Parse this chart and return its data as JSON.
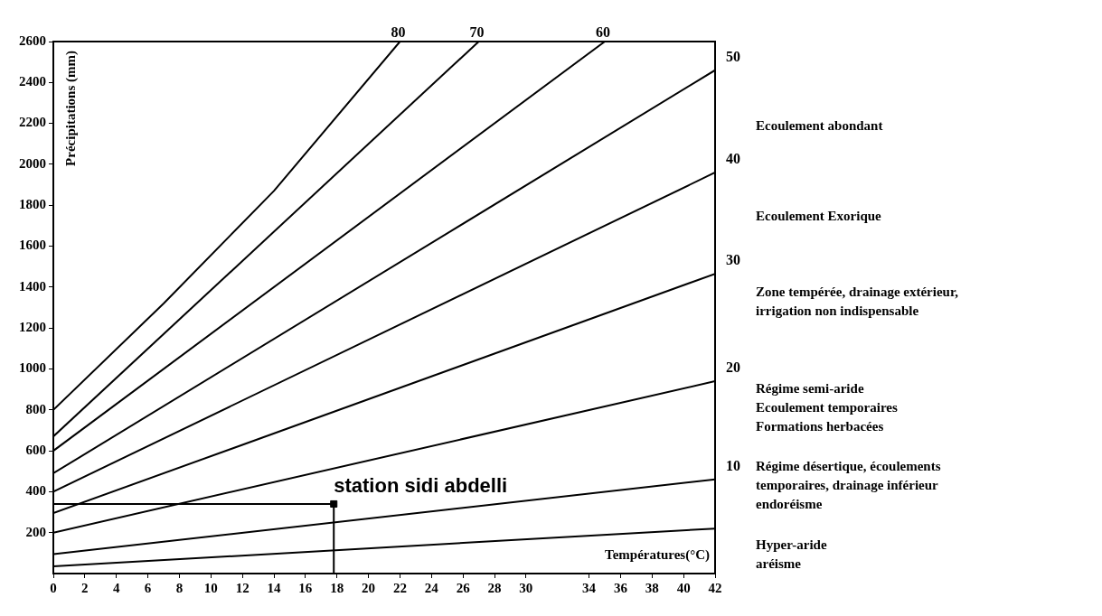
{
  "chart_data": {
    "type": "line",
    "xlabel": "Températures(°C)",
    "ylabel": "Précipitations (mm)",
    "xlim": [
      0,
      42
    ],
    "ylim": [
      0,
      2600
    ],
    "xticks": [
      0,
      2,
      4,
      6,
      8,
      10,
      12,
      14,
      16,
      18,
      20,
      22,
      24,
      26,
      28,
      30,
      34,
      36,
      38,
      40,
      42
    ],
    "yticks": [
      200,
      400,
      600,
      800,
      1000,
      1200,
      1400,
      1600,
      1800,
      2000,
      2200,
      2400,
      2600
    ],
    "grid": false,
    "legend": false,
    "series": [
      {
        "type": "line",
        "color": "#000000",
        "x": [
          0,
          42
        ],
        "values": [
          35,
          220
        ]
      },
      {
        "type": "line",
        "name": "10",
        "color": "#000000",
        "x": [
          0,
          42
        ],
        "values": [
          95,
          460
        ]
      },
      {
        "type": "line",
        "name": "20",
        "color": "#000000",
        "x": [
          0,
          42
        ],
        "values": [
          200,
          940
        ]
      },
      {
        "type": "line",
        "name": "30",
        "color": "#000000",
        "x": [
          0,
          42
        ],
        "values": [
          295,
          1465
        ]
      },
      {
        "type": "line",
        "name": "40",
        "color": "#000000",
        "x": [
          0,
          42
        ],
        "values": [
          400,
          1960
        ]
      },
      {
        "type": "line",
        "name": "50",
        "color": "#000000",
        "x": [
          0,
          42
        ],
        "values": [
          490,
          2460
        ]
      },
      {
        "type": "line",
        "name": "60",
        "color": "#000000",
        "x": [
          0,
          35
        ],
        "values": [
          600,
          2600
        ]
      },
      {
        "type": "line",
        "name": "70",
        "color": "#000000",
        "x": [
          0,
          27
        ],
        "values": [
          670,
          2600
        ]
      },
      {
        "type": "line",
        "name": "80",
        "color": "#000000",
        "x": [
          0,
          7,
          14,
          22
        ],
        "values": [
          800,
          1320,
          1870,
          2600
        ]
      },
      {
        "type": "line",
        "color": "#000000",
        "x": [
          0,
          17.8,
          17.8
        ],
        "values": [
          340,
          340,
          0
        ]
      },
      {
        "type": "scatter",
        "name": "station sidi abdelli",
        "color": "#000000",
        "marker": "square",
        "x": [
          17.8
        ],
        "values": [
          340
        ]
      }
    ],
    "annotations": [
      "Ecoulement abondant",
      "Ecoulement Exorique",
      "Zone tempérée, drainage extérieur,\nirrigation non indispensable",
      "Régime semi-aride\nEcoulement temporaires\nFormations herbacées",
      "Régime désertique, écoulements\ntemporaires, drainage inférieur\nendoréisme",
      "Hyper-aride\naréisme"
    ]
  }
}
